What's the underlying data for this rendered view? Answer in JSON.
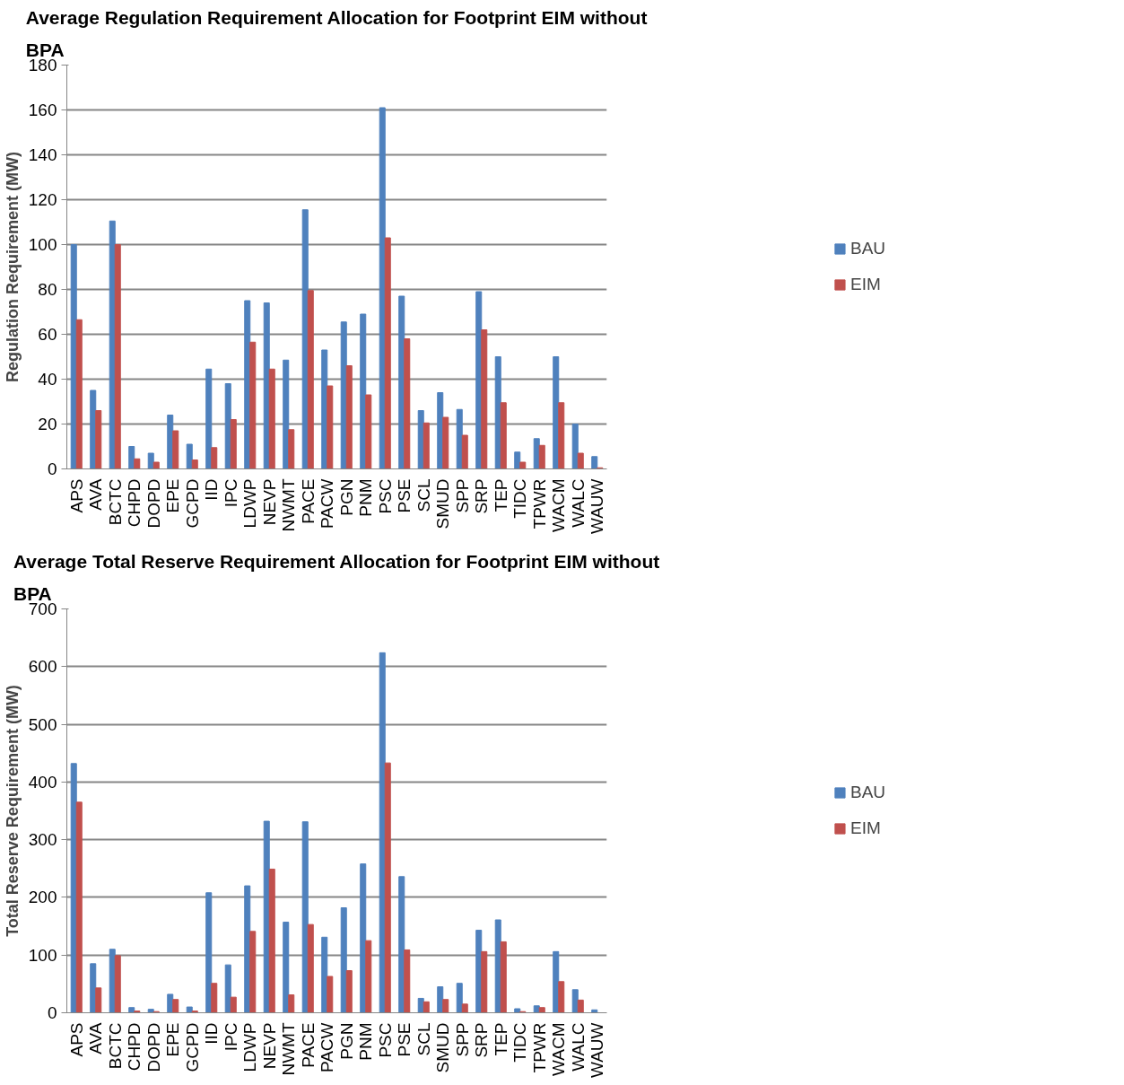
{
  "chart_data": [
    {
      "type": "bar",
      "title": "Average Regulation Requirement Allocation for Footprint EIM without BPA",
      "ylabel": "Regulation Requirement (MW)",
      "categories": [
        "APS",
        "AVA",
        "BCTC",
        "CHPD",
        "DOPD",
        "EPE",
        "GCPD",
        "IID",
        "IPC",
        "LDWP",
        "NEVP",
        "NWMT",
        "PACE",
        "PACW",
        "PGN",
        "PNM",
        "PSC",
        "PSE",
        "SCL",
        "SMUD",
        "SPP",
        "SRP",
        "TEP",
        "TIDC",
        "TPWR",
        "WACM",
        "WALC",
        "WAUW"
      ],
      "series": [
        {
          "name": "BAU",
          "color": "#4f81bd",
          "values": [
            100,
            35,
            110.5,
            10,
            7,
            24,
            11,
            44.5,
            38,
            75,
            74,
            48.5,
            115.5,
            53,
            65.5,
            69,
            161,
            77,
            26,
            34,
            26.5,
            79,
            50,
            7.5,
            13.5,
            50,
            20,
            5.5
          ]
        },
        {
          "name": "EIM",
          "color": "#c0504d",
          "values": [
            66.5,
            26,
            100,
            4.5,
            3,
            17,
            4,
            9.5,
            22,
            56.5,
            44.5,
            17.5,
            79.5,
            37,
            46,
            33,
            103,
            58,
            20.5,
            23,
            15,
            62,
            29.5,
            3,
            10.5,
            29.5,
            7,
            0.5
          ]
        }
      ],
      "ylim": [
        0,
        180
      ],
      "yticks": [
        0,
        20,
        40,
        60,
        80,
        100,
        120,
        140,
        160,
        180
      ],
      "grid": "y",
      "legend": "right"
    },
    {
      "type": "bar",
      "title": "Average Total Reserve Requirement Allocation for Footprint EIM without BPA",
      "ylabel": "Total Reserve Requirement (MW)",
      "categories": [
        "APS",
        "AVA",
        "BCTC",
        "CHPD",
        "DOPD",
        "EPE",
        "GCPD",
        "IID",
        "IPC",
        "LDWP",
        "NEVP",
        "NWMT",
        "PACE",
        "PACW",
        "PGN",
        "PNM",
        "PSC",
        "PSE",
        "SCL",
        "SMUD",
        "SPP",
        "SRP",
        "TEP",
        "TIDC",
        "TPWR",
        "WACM",
        "WALC",
        "WAUW"
      ],
      "series": [
        {
          "name": "BAU",
          "color": "#4f81bd",
          "values": [
            432,
            85,
            110,
            9,
            6,
            32,
            10,
            208,
            83,
            220,
            332,
            157,
            331,
            131,
            182,
            258,
            624,
            236,
            25,
            45,
            51,
            143,
            161,
            7,
            12,
            106,
            40,
            5
          ]
        },
        {
          "name": "EIM",
          "color": "#c0504d",
          "values": [
            365,
            43,
            99,
            3,
            2,
            23,
            3,
            51,
            27,
            141,
            249,
            31,
            153,
            63,
            73,
            125,
            433,
            109,
            19,
            23,
            15,
            106,
            123,
            2,
            9,
            54,
            22,
            null
          ]
        }
      ],
      "ylim": [
        0,
        700
      ],
      "yticks": [
        0,
        100,
        200,
        300,
        400,
        500,
        600,
        700
      ],
      "grid": "y",
      "legend": "right"
    }
  ]
}
